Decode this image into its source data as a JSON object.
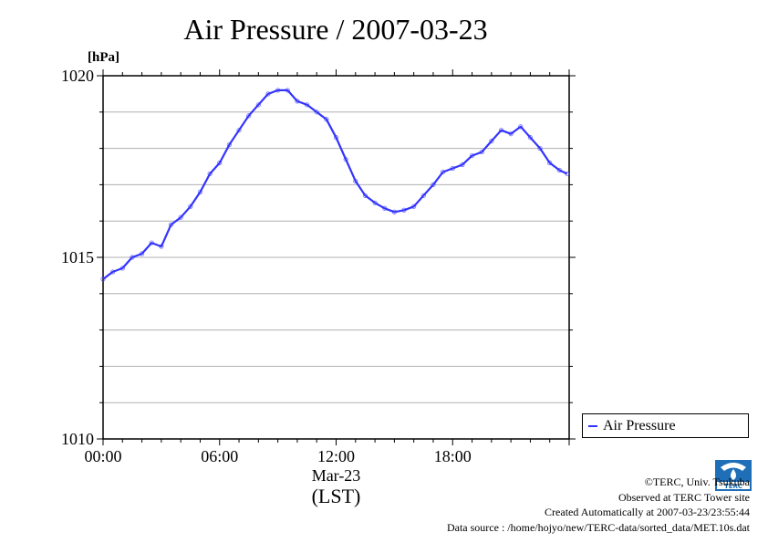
{
  "chart_data": {
    "type": "line",
    "title": "Air Pressure / 2007-03-23",
    "ylabel": "[hPa]",
    "xlabel_date": "Mar-23",
    "xlabel": "(LST)",
    "xlim": [
      0,
      24
    ],
    "ylim": [
      1010,
      1020
    ],
    "x_ticks": [
      {
        "value": 0,
        "label": "00:00"
      },
      {
        "value": 6,
        "label": "06:00"
      },
      {
        "value": 12,
        "label": "12:00"
      },
      {
        "value": 18,
        "label": "18:00"
      }
    ],
    "y_ticks": [
      {
        "value": 1010,
        "label": "1010"
      },
      {
        "value": 1015,
        "label": "1015"
      },
      {
        "value": 1020,
        "label": "1020"
      }
    ],
    "grid": true,
    "legend_position": "right-bottom",
    "series": [
      {
        "name": "Air Pressure",
        "color": "#3333ff",
        "x": [
          0,
          0.5,
          1,
          1.5,
          2,
          2.5,
          3,
          3.5,
          4,
          4.5,
          5,
          5.5,
          6,
          6.5,
          7,
          7.5,
          8,
          8.5,
          9,
          9.5,
          10,
          10.5,
          11,
          11.5,
          12,
          12.5,
          13,
          13.5,
          14,
          14.5,
          15,
          15.5,
          16,
          16.5,
          17,
          17.5,
          18,
          18.5,
          19,
          19.5,
          20,
          20.5,
          21,
          21.5,
          22,
          22.5,
          23,
          23.5,
          23.9
        ],
        "y": [
          1014.4,
          1014.6,
          1014.7,
          1015.0,
          1015.1,
          1015.4,
          1015.3,
          1015.9,
          1016.1,
          1016.4,
          1016.8,
          1017.3,
          1017.6,
          1018.1,
          1018.5,
          1018.9,
          1019.2,
          1019.5,
          1019.6,
          1019.6,
          1019.3,
          1019.2,
          1019.0,
          1018.8,
          1018.3,
          1017.7,
          1017.1,
          1016.7,
          1016.5,
          1016.35,
          1016.25,
          1016.3,
          1016.4,
          1016.7,
          1017.0,
          1017.35,
          1017.45,
          1017.55,
          1017.8,
          1017.9,
          1018.2,
          1018.5,
          1018.4,
          1018.6,
          1018.3,
          1018.0,
          1017.6,
          1017.4,
          1017.3
        ]
      }
    ]
  },
  "credits": {
    "copyright": "©TERC, Univ. Tsukuba",
    "observed": "Observed at TERC Tower site",
    "created": "Created Automatically at 2007-03-23/23:55:44",
    "source": "Data source : /home/hojyo/new/TERC-data/sorted_data/MET.10s.dat",
    "logo_text": "TERC"
  }
}
